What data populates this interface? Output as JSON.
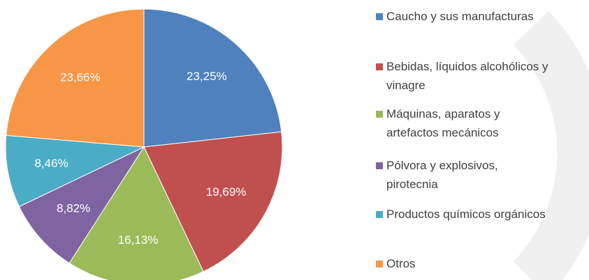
{
  "chart_data": {
    "type": "pie",
    "categories": [
      "Caucho y sus manufacturas",
      "Bebidas, líquidos alcohólicos y vinagre",
      "Máquinas, aparatos y artefactos mecánicos",
      "Pólvora y explosivos, pirotecnia",
      "Productos químicos orgánicos",
      "Otros"
    ],
    "values": [
      23.25,
      19.69,
      16.13,
      8.82,
      8.46,
      23.66
    ],
    "value_labels": [
      "23,25%",
      "19,69%",
      "16,13%",
      "8,82%",
      "8,46%",
      "23,66%"
    ],
    "colors": [
      "#4f81bd",
      "#c0504d",
      "#9bbb59",
      "#8064a2",
      "#4bacc6",
      "#f79646"
    ],
    "legend": "right"
  }
}
